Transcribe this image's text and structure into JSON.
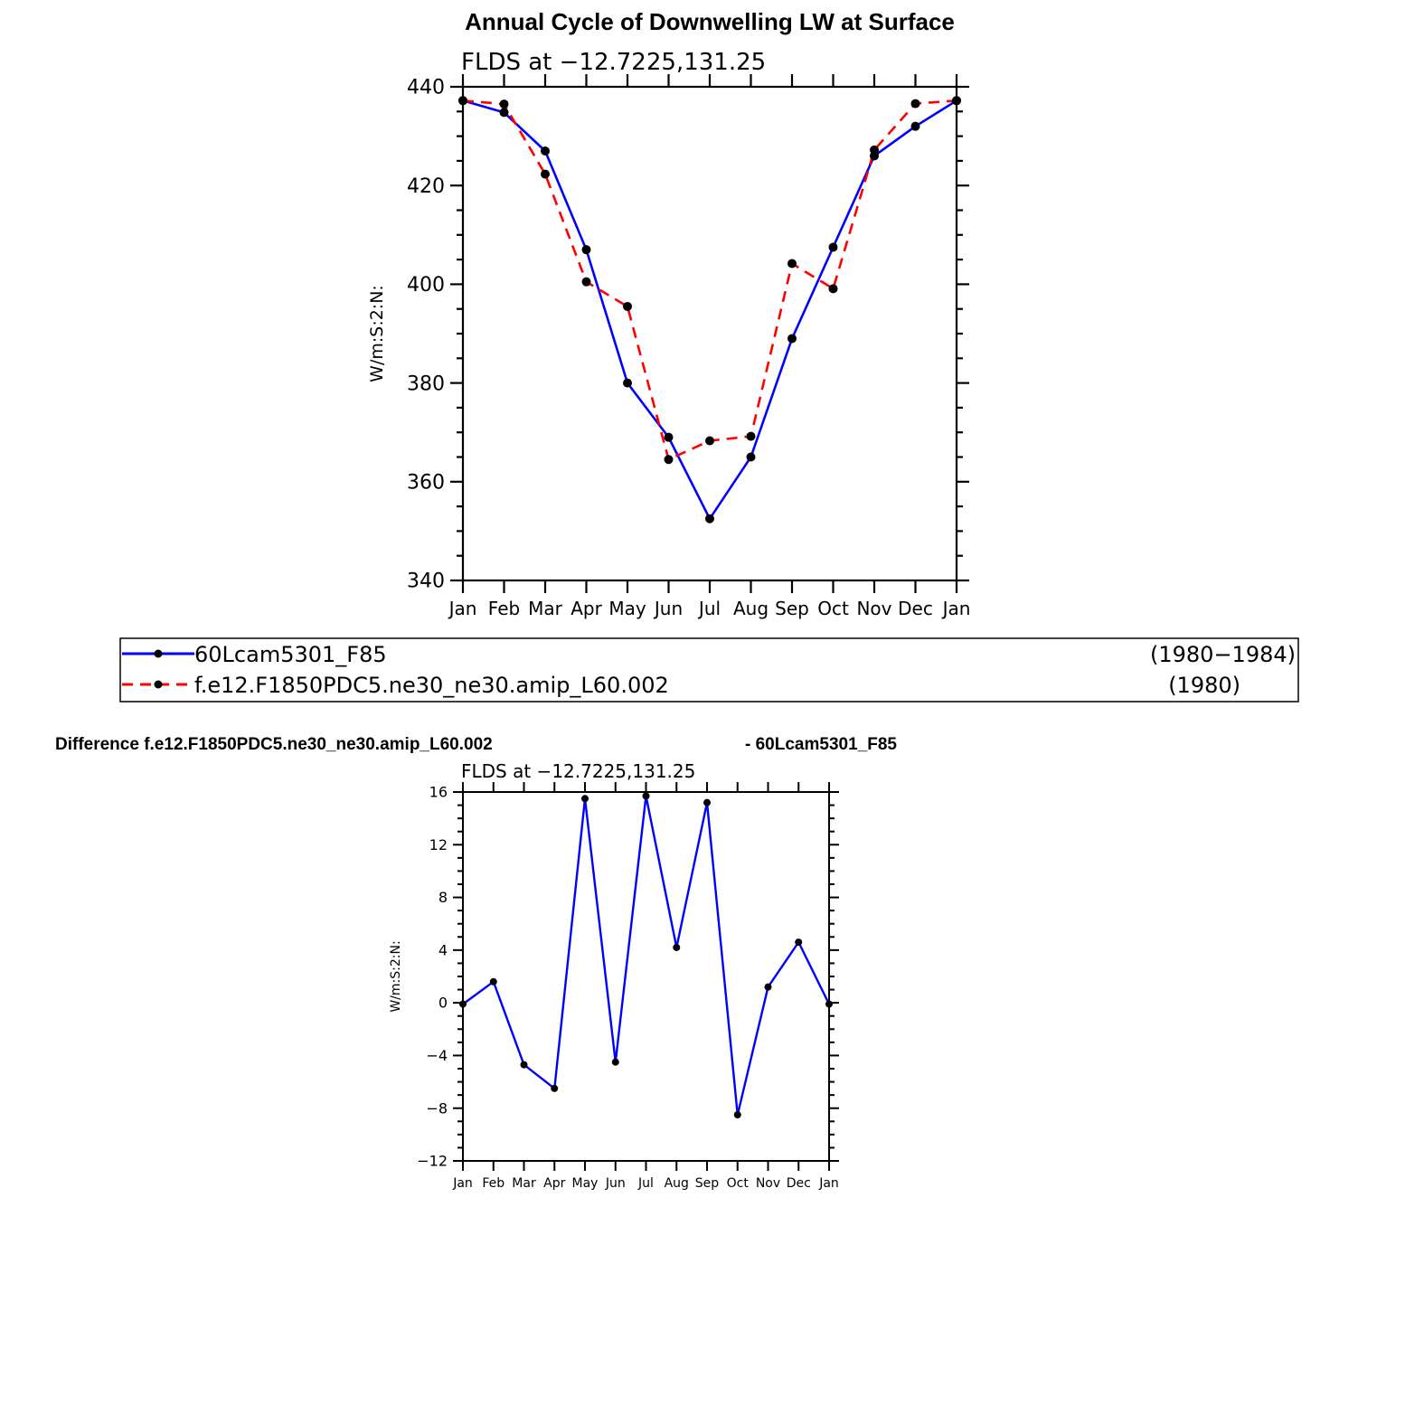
{
  "main_title": "Annual Cycle of Downwelling LW at Surface",
  "diff_title_left": "Difference f.e12.F1850PDC5.ne30_ne30.amip_L60.002",
  "diff_title_right": "- 60Lcam5301_F85",
  "colors": {
    "series1": "#0000ff",
    "series2": "#ff0000",
    "marker": "#000000",
    "axis": "#000000"
  },
  "chart_data": [
    {
      "type": "line",
      "subtitle": "FLDS at −12.7225,131.25",
      "ylabel": "W/m:S:2:N:",
      "categories": [
        "Jan",
        "Feb",
        "Mar",
        "Apr",
        "May",
        "Jun",
        "Jul",
        "Aug",
        "Sep",
        "Oct",
        "Nov",
        "Dec",
        "Jan"
      ],
      "ylim": [
        340,
        440
      ],
      "yticks": [
        340,
        360,
        380,
        400,
        420,
        440
      ],
      "yminor": 5,
      "series": [
        {
          "name": "60Lcam5301_F85",
          "period": "(1980−1984)",
          "style": "solid",
          "values": [
            437.2,
            434.8,
            427.0,
            407.0,
            380.0,
            369.0,
            352.5,
            365.0,
            389.0,
            407.5,
            426.0,
            432.0,
            437.2
          ]
        },
        {
          "name": "f.e12.F1850PDC5.ne30_ne30.amip_L60.002",
          "period": "(1980)",
          "style": "dashed",
          "values": [
            437.2,
            436.5,
            422.3,
            400.5,
            395.5,
            364.5,
            368.3,
            369.2,
            404.2,
            399.1,
            427.2,
            436.6,
            437.2
          ]
        }
      ],
      "grid": false,
      "legend_position": "below"
    },
    {
      "type": "line",
      "subtitle": "FLDS at −12.7225,131.25",
      "ylabel": "W/m:S:2:N:",
      "categories": [
        "Jan",
        "Feb",
        "Mar",
        "Apr",
        "May",
        "Jun",
        "Jul",
        "Aug",
        "Sep",
        "Oct",
        "Nov",
        "Dec",
        "Jan"
      ],
      "ylim": [
        -12,
        16
      ],
      "yticks": [
        -12,
        -8,
        -4,
        0,
        4,
        8,
        12,
        16
      ],
      "yminor": 1,
      "series": [
        {
          "style": "solid",
          "values": [
            -0.1,
            1.6,
            -4.7,
            -6.5,
            15.5,
            -4.5,
            15.7,
            4.2,
            15.2,
            -8.5,
            1.2,
            4.6,
            -0.1
          ]
        }
      ],
      "grid": false
    }
  ]
}
